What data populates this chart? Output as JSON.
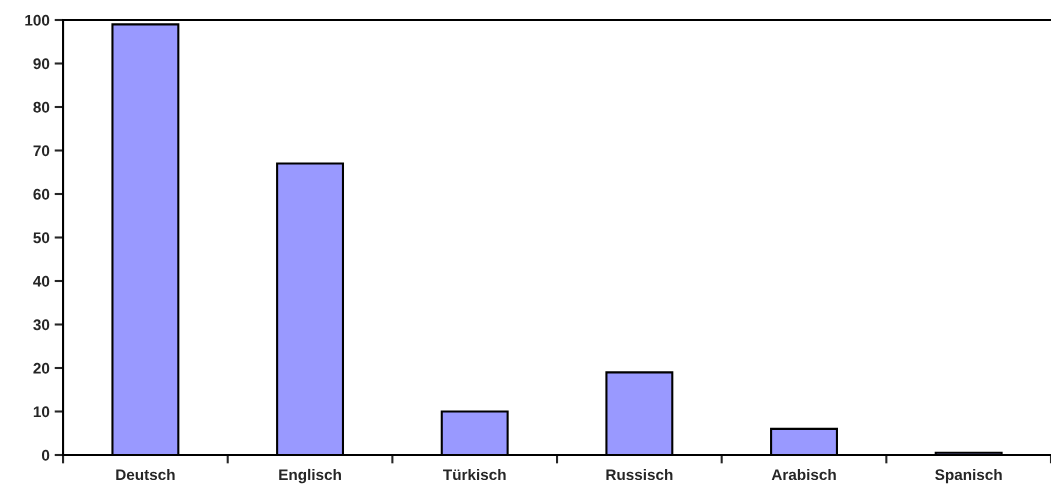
{
  "chart_data": {
    "type": "bar",
    "categories": [
      "Deutsch",
      "Englisch",
      "Türkisch",
      "Russisch",
      "Arabisch",
      "Spanisch"
    ],
    "values": [
      99,
      67,
      10,
      19,
      6,
      0.5
    ],
    "color": "#9999ff",
    "ylim": [
      0,
      100
    ],
    "yticks": [
      0,
      10,
      20,
      30,
      40,
      50,
      60,
      70,
      80,
      90,
      100
    ],
    "grid": false,
    "legend": false
  }
}
